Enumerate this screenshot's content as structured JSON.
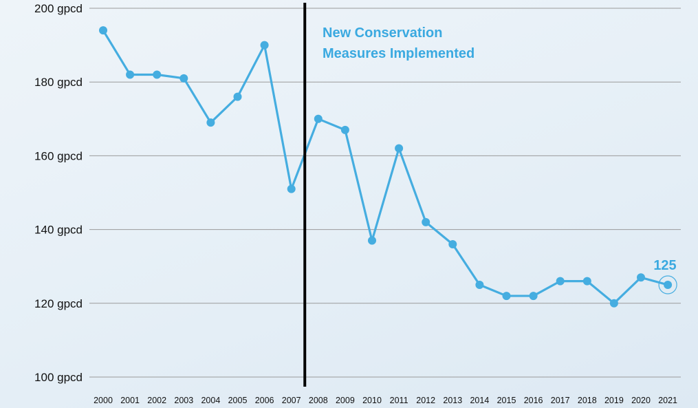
{
  "chart_data": {
    "type": "line",
    "title": "",
    "xlabel": "",
    "ylabel": "",
    "x": [
      "2000",
      "2001",
      "2002",
      "2003",
      "2004",
      "2005",
      "2006",
      "2007",
      "2008",
      "2009",
      "2010",
      "2011",
      "2012",
      "2013",
      "2014",
      "2015",
      "2016",
      "2017",
      "2018",
      "2019",
      "2020",
      "2021"
    ],
    "series": [
      {
        "values": [
          194,
          182,
          182,
          181,
          169,
          176,
          190,
          151,
          170,
          167,
          137,
          162,
          142,
          136,
          125,
          122,
          122,
          126,
          126,
          120,
          127,
          125
        ]
      }
    ],
    "ylim": [
      100,
      200
    ],
    "yticks": [
      100,
      120,
      140,
      160,
      180,
      200
    ],
    "ytick_labels": [
      "100 gpcd",
      "120 gpcd",
      "140 gpcd",
      "160 gpcd",
      "180 gpcd",
      "200 gpcd"
    ],
    "grid": true,
    "legend": "none",
    "annotations": {
      "divider_between": [
        "2007",
        "2008"
      ],
      "label_lines": [
        "New Conservation",
        "Measures Implemented"
      ],
      "last_value_label": "125"
    },
    "colors": {
      "series": "#45ade0",
      "annotation": "#3aa9e0",
      "grid": "#9a9a9a",
      "divider": "#000000",
      "text": "#111111"
    }
  }
}
